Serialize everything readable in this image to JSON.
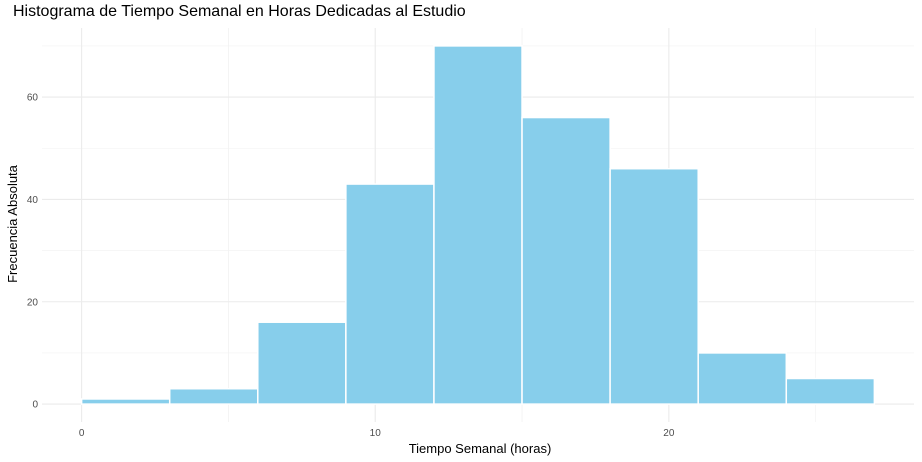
{
  "chart_data": {
    "type": "bar",
    "title": "Histograma de Tiempo Semanal en Horas Dedicadas al Estudio",
    "xlabel": "Tiempo Semanal (horas)",
    "ylabel": "Frecuencia Absoluta",
    "bins": [
      {
        "start": 0,
        "end": 3,
        "count": 1
      },
      {
        "start": 3,
        "end": 6,
        "count": 3
      },
      {
        "start": 6,
        "end": 9,
        "count": 16
      },
      {
        "start": 9,
        "end": 12,
        "count": 43
      },
      {
        "start": 12,
        "end": 15,
        "count": 70
      },
      {
        "start": 15,
        "end": 18,
        "count": 56
      },
      {
        "start": 18,
        "end": 21,
        "count": 46
      },
      {
        "start": 21,
        "end": 24,
        "count": 10
      },
      {
        "start": 24,
        "end": 27,
        "count": 5
      }
    ],
    "x_ticks": [
      0,
      10,
      20
    ],
    "y_ticks": [
      0,
      20,
      40,
      60
    ],
    "xlim": [
      -1.35,
      28.35
    ],
    "ylim": [
      -3.5,
      73.5
    ],
    "bar_color": "#87CEEB",
    "bar_border_color": "#FFFFFF",
    "grid": true,
    "legend": "none"
  }
}
